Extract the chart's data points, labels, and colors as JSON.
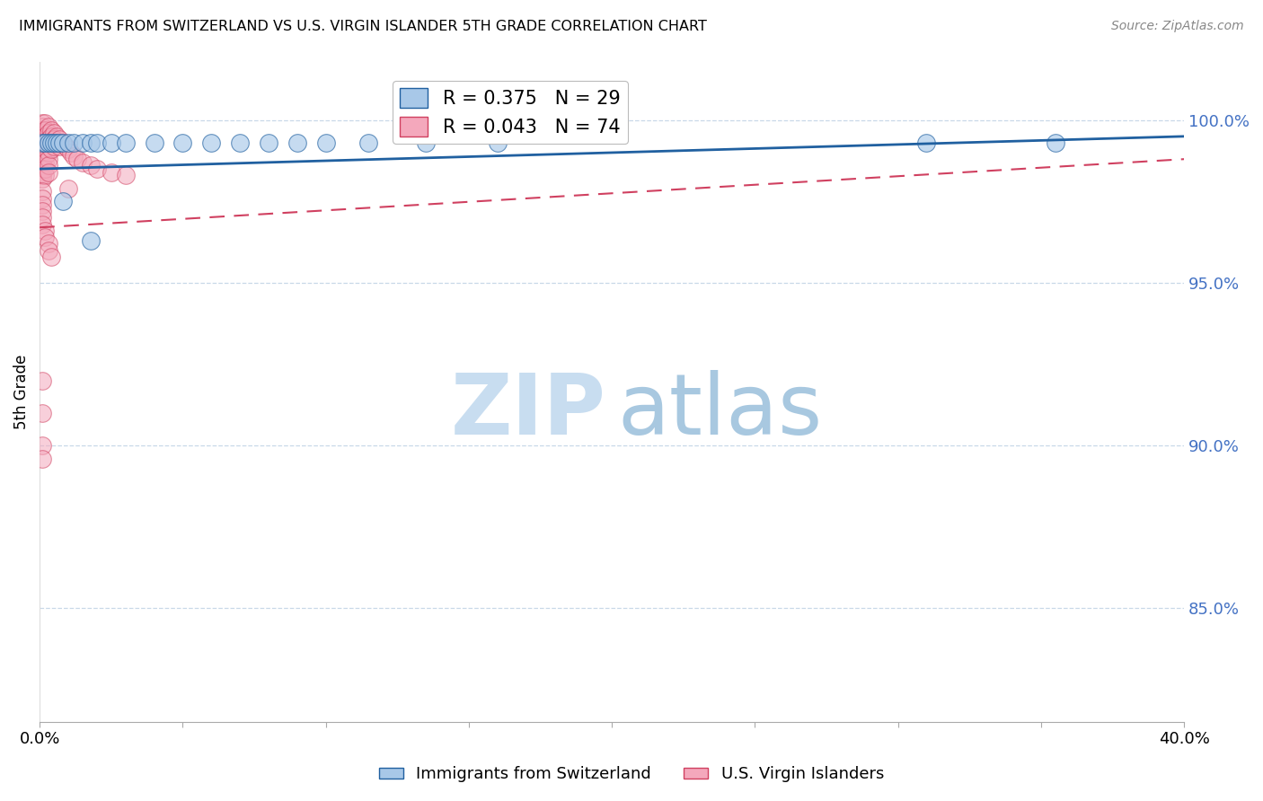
{
  "title": "IMMIGRANTS FROM SWITZERLAND VS U.S. VIRGIN ISLANDER 5TH GRADE CORRELATION CHART",
  "source": "Source: ZipAtlas.com",
  "ylabel": "5th Grade",
  "legend_label1": "Immigrants from Switzerland",
  "legend_label2": "U.S. Virgin Islanders",
  "blue_color": "#a8c8e8",
  "pink_color": "#f4a8bc",
  "trendline_blue": "#2060a0",
  "trendline_pink": "#d04060",
  "grid_color": "#c8d8e8",
  "right_tick_color": "#4472C4",
  "watermark_zip_color": "#c8ddf0",
  "watermark_atlas_color": "#a8c8e0",
  "xlim": [
    0.0,
    0.4
  ],
  "ylim": [
    0.815,
    1.018
  ],
  "right_yticks": [
    1.0,
    0.95,
    0.9,
    0.85
  ],
  "right_yticklabels": [
    "100.0%",
    "95.0%",
    "90.0%",
    "85.0%"
  ],
  "xticks": [
    0.0,
    0.05,
    0.1,
    0.15,
    0.2,
    0.25,
    0.3,
    0.35,
    0.4
  ],
  "blue_trend": [
    0.985,
    0.995
  ],
  "pink_trend": [
    0.967,
    0.988
  ],
  "blue_x": [
    0.001,
    0.002,
    0.003,
    0.004,
    0.005,
    0.006,
    0.007,
    0.008,
    0.01,
    0.012,
    0.015,
    0.018,
    0.02,
    0.025,
    0.03,
    0.04,
    0.05,
    0.06,
    0.07,
    0.08,
    0.09,
    0.1,
    0.115,
    0.135,
    0.16,
    0.31,
    0.355,
    0.008,
    0.018
  ],
  "blue_y": [
    0.993,
    0.993,
    0.993,
    0.993,
    0.993,
    0.993,
    0.993,
    0.993,
    0.993,
    0.993,
    0.993,
    0.993,
    0.993,
    0.993,
    0.993,
    0.993,
    0.993,
    0.993,
    0.993,
    0.993,
    0.993,
    0.993,
    0.993,
    0.993,
    0.993,
    0.993,
    0.993,
    0.975,
    0.963
  ],
  "pink_x": [
    0.001,
    0.001,
    0.001,
    0.001,
    0.001,
    0.001,
    0.001,
    0.001,
    0.001,
    0.001,
    0.001,
    0.001,
    0.001,
    0.001,
    0.001,
    0.001,
    0.001,
    0.001,
    0.002,
    0.002,
    0.002,
    0.002,
    0.002,
    0.002,
    0.002,
    0.002,
    0.002,
    0.003,
    0.003,
    0.003,
    0.003,
    0.003,
    0.003,
    0.003,
    0.003,
    0.004,
    0.004,
    0.004,
    0.004,
    0.005,
    0.005,
    0.005,
    0.006,
    0.006,
    0.007,
    0.007,
    0.008,
    0.009,
    0.01,
    0.011,
    0.012,
    0.013,
    0.015,
    0.018,
    0.02,
    0.025,
    0.03,
    0.001,
    0.01,
    0.001,
    0.001,
    0.001,
    0.001,
    0.001,
    0.002,
    0.002,
    0.003,
    0.003,
    0.004,
    0.001,
    0.001,
    0.001,
    0.001
  ],
  "pink_y": [
    0.999,
    0.998,
    0.997,
    0.996,
    0.995,
    0.994,
    0.993,
    0.992,
    0.991,
    0.99,
    0.989,
    0.988,
    0.987,
    0.986,
    0.985,
    0.984,
    0.983,
    0.982,
    0.999,
    0.997,
    0.995,
    0.993,
    0.991,
    0.989,
    0.987,
    0.985,
    0.983,
    0.998,
    0.996,
    0.994,
    0.992,
    0.99,
    0.988,
    0.986,
    0.984,
    0.997,
    0.995,
    0.993,
    0.991,
    0.996,
    0.994,
    0.992,
    0.995,
    0.993,
    0.994,
    0.992,
    0.993,
    0.992,
    0.991,
    0.99,
    0.989,
    0.988,
    0.987,
    0.986,
    0.985,
    0.984,
    0.983,
    0.978,
    0.979,
    0.976,
    0.974,
    0.972,
    0.97,
    0.968,
    0.966,
    0.964,
    0.962,
    0.96,
    0.958,
    0.92,
    0.9,
    0.91,
    0.896
  ]
}
